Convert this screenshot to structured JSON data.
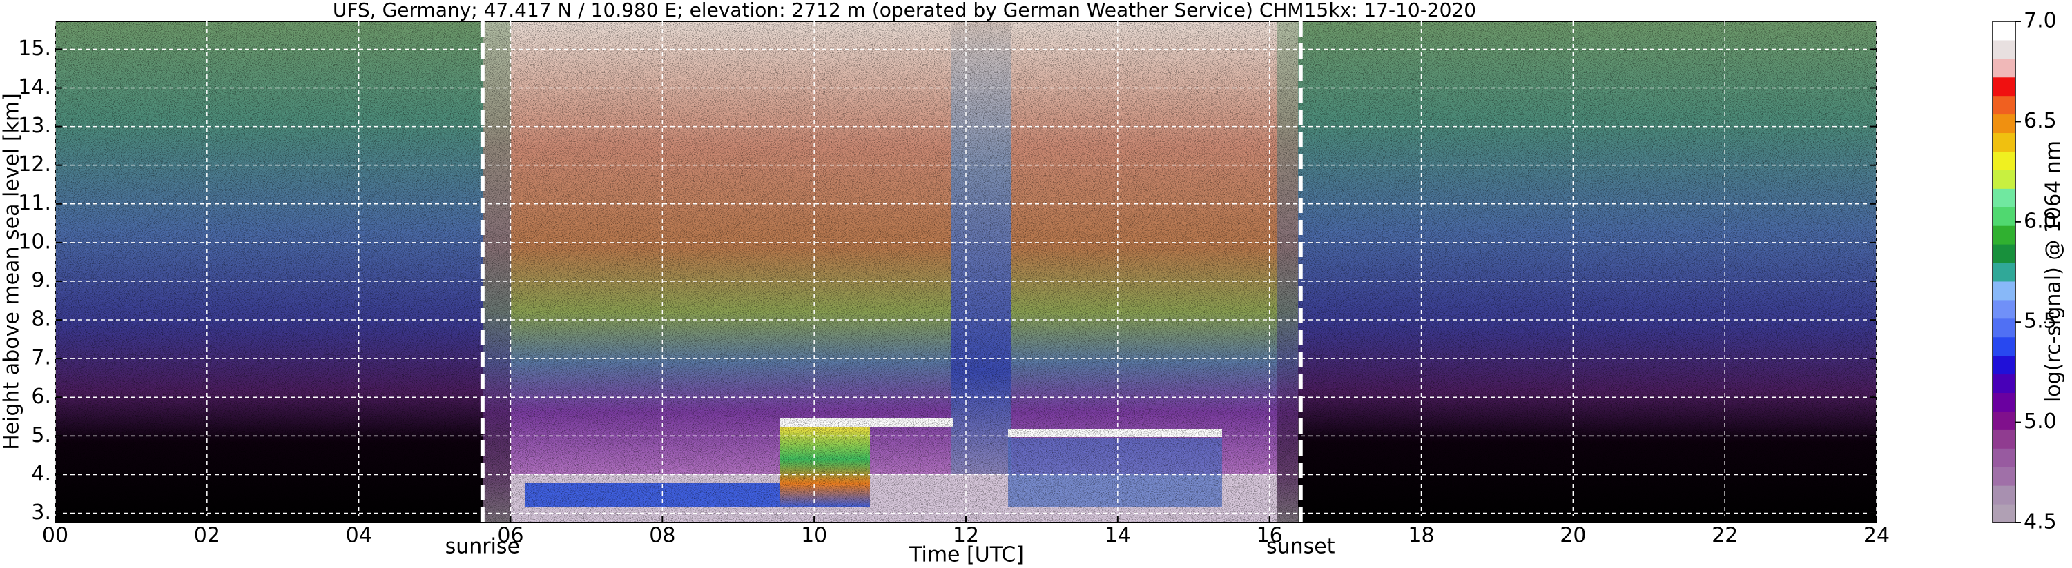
{
  "chart_data": {
    "type": "heatmap",
    "title": "UFS, Germany; 47.417 N / 10.980 E; elevation: 2712 m  (operated by German Weather Service)     CHM15kx: 17-10-2020",
    "xlabel": "Time [UTC]",
    "ylabel": "Height above mean sea level [km]",
    "xlim": [
      0,
      24
    ],
    "xticks": [
      {
        "value": 0,
        "label": "00"
      },
      {
        "value": 2,
        "label": "02"
      },
      {
        "value": 4,
        "label": "04"
      },
      {
        "value": 6,
        "label": "06"
      },
      {
        "value": 8,
        "label": "08"
      },
      {
        "value": 10,
        "label": "10"
      },
      12,
      14,
      16,
      18,
      20,
      22,
      24
    ],
    "ylim": [
      2.76,
      15.72
    ],
    "yticks": [
      {
        "value": 3,
        "label": "3."
      },
      {
        "value": 4,
        "label": "4."
      },
      {
        "value": 5,
        "label": "5."
      },
      {
        "value": 6,
        "label": "6."
      },
      {
        "value": 7,
        "label": "7."
      },
      {
        "value": 8,
        "label": "8."
      },
      {
        "value": 9,
        "label": "9."
      },
      {
        "value": 10,
        "label": "10."
      },
      {
        "value": 11,
        "label": "11."
      },
      {
        "value": 12,
        "label": "12."
      },
      {
        "value": 13,
        "label": "13."
      },
      {
        "value": 14,
        "label": "14."
      },
      {
        "value": 15,
        "label": "15."
      }
    ],
    "grid": true,
    "vlines": [
      {
        "x": 5.63,
        "label": "sunrise"
      },
      {
        "x": 16.41,
        "label": "sunset"
      }
    ],
    "colorbar": {
      "label": "log(rc-signal) @ 1064 nm",
      "lim": [
        4.5,
        7.0
      ],
      "ticks": [
        4.5,
        {
          "value": 5,
          "label": "5.0"
        },
        5.5,
        {
          "value": 6,
          "label": "6.0"
        },
        6.5,
        {
          "value": 7,
          "label": "7.0"
        }
      ],
      "colors": [
        "#b0a0b4",
        "#a890b0",
        "#a070a8",
        "#985aa0",
        "#903c90",
        "#80108c",
        "#6a00a0",
        "#4800b8",
        "#2010d8",
        "#2848f0",
        "#5070f4",
        "#7090f8",
        "#88b8f8",
        "#30a898",
        "#18903c",
        "#30b030",
        "#50d870",
        "#70e8a0",
        "#c8f040",
        "#f0f020",
        "#f0c010",
        "#f09010",
        "#f06020",
        "#f01010",
        "#f0b8b8",
        "#e8e0e0",
        "#ffffff"
      ]
    }
  }
}
